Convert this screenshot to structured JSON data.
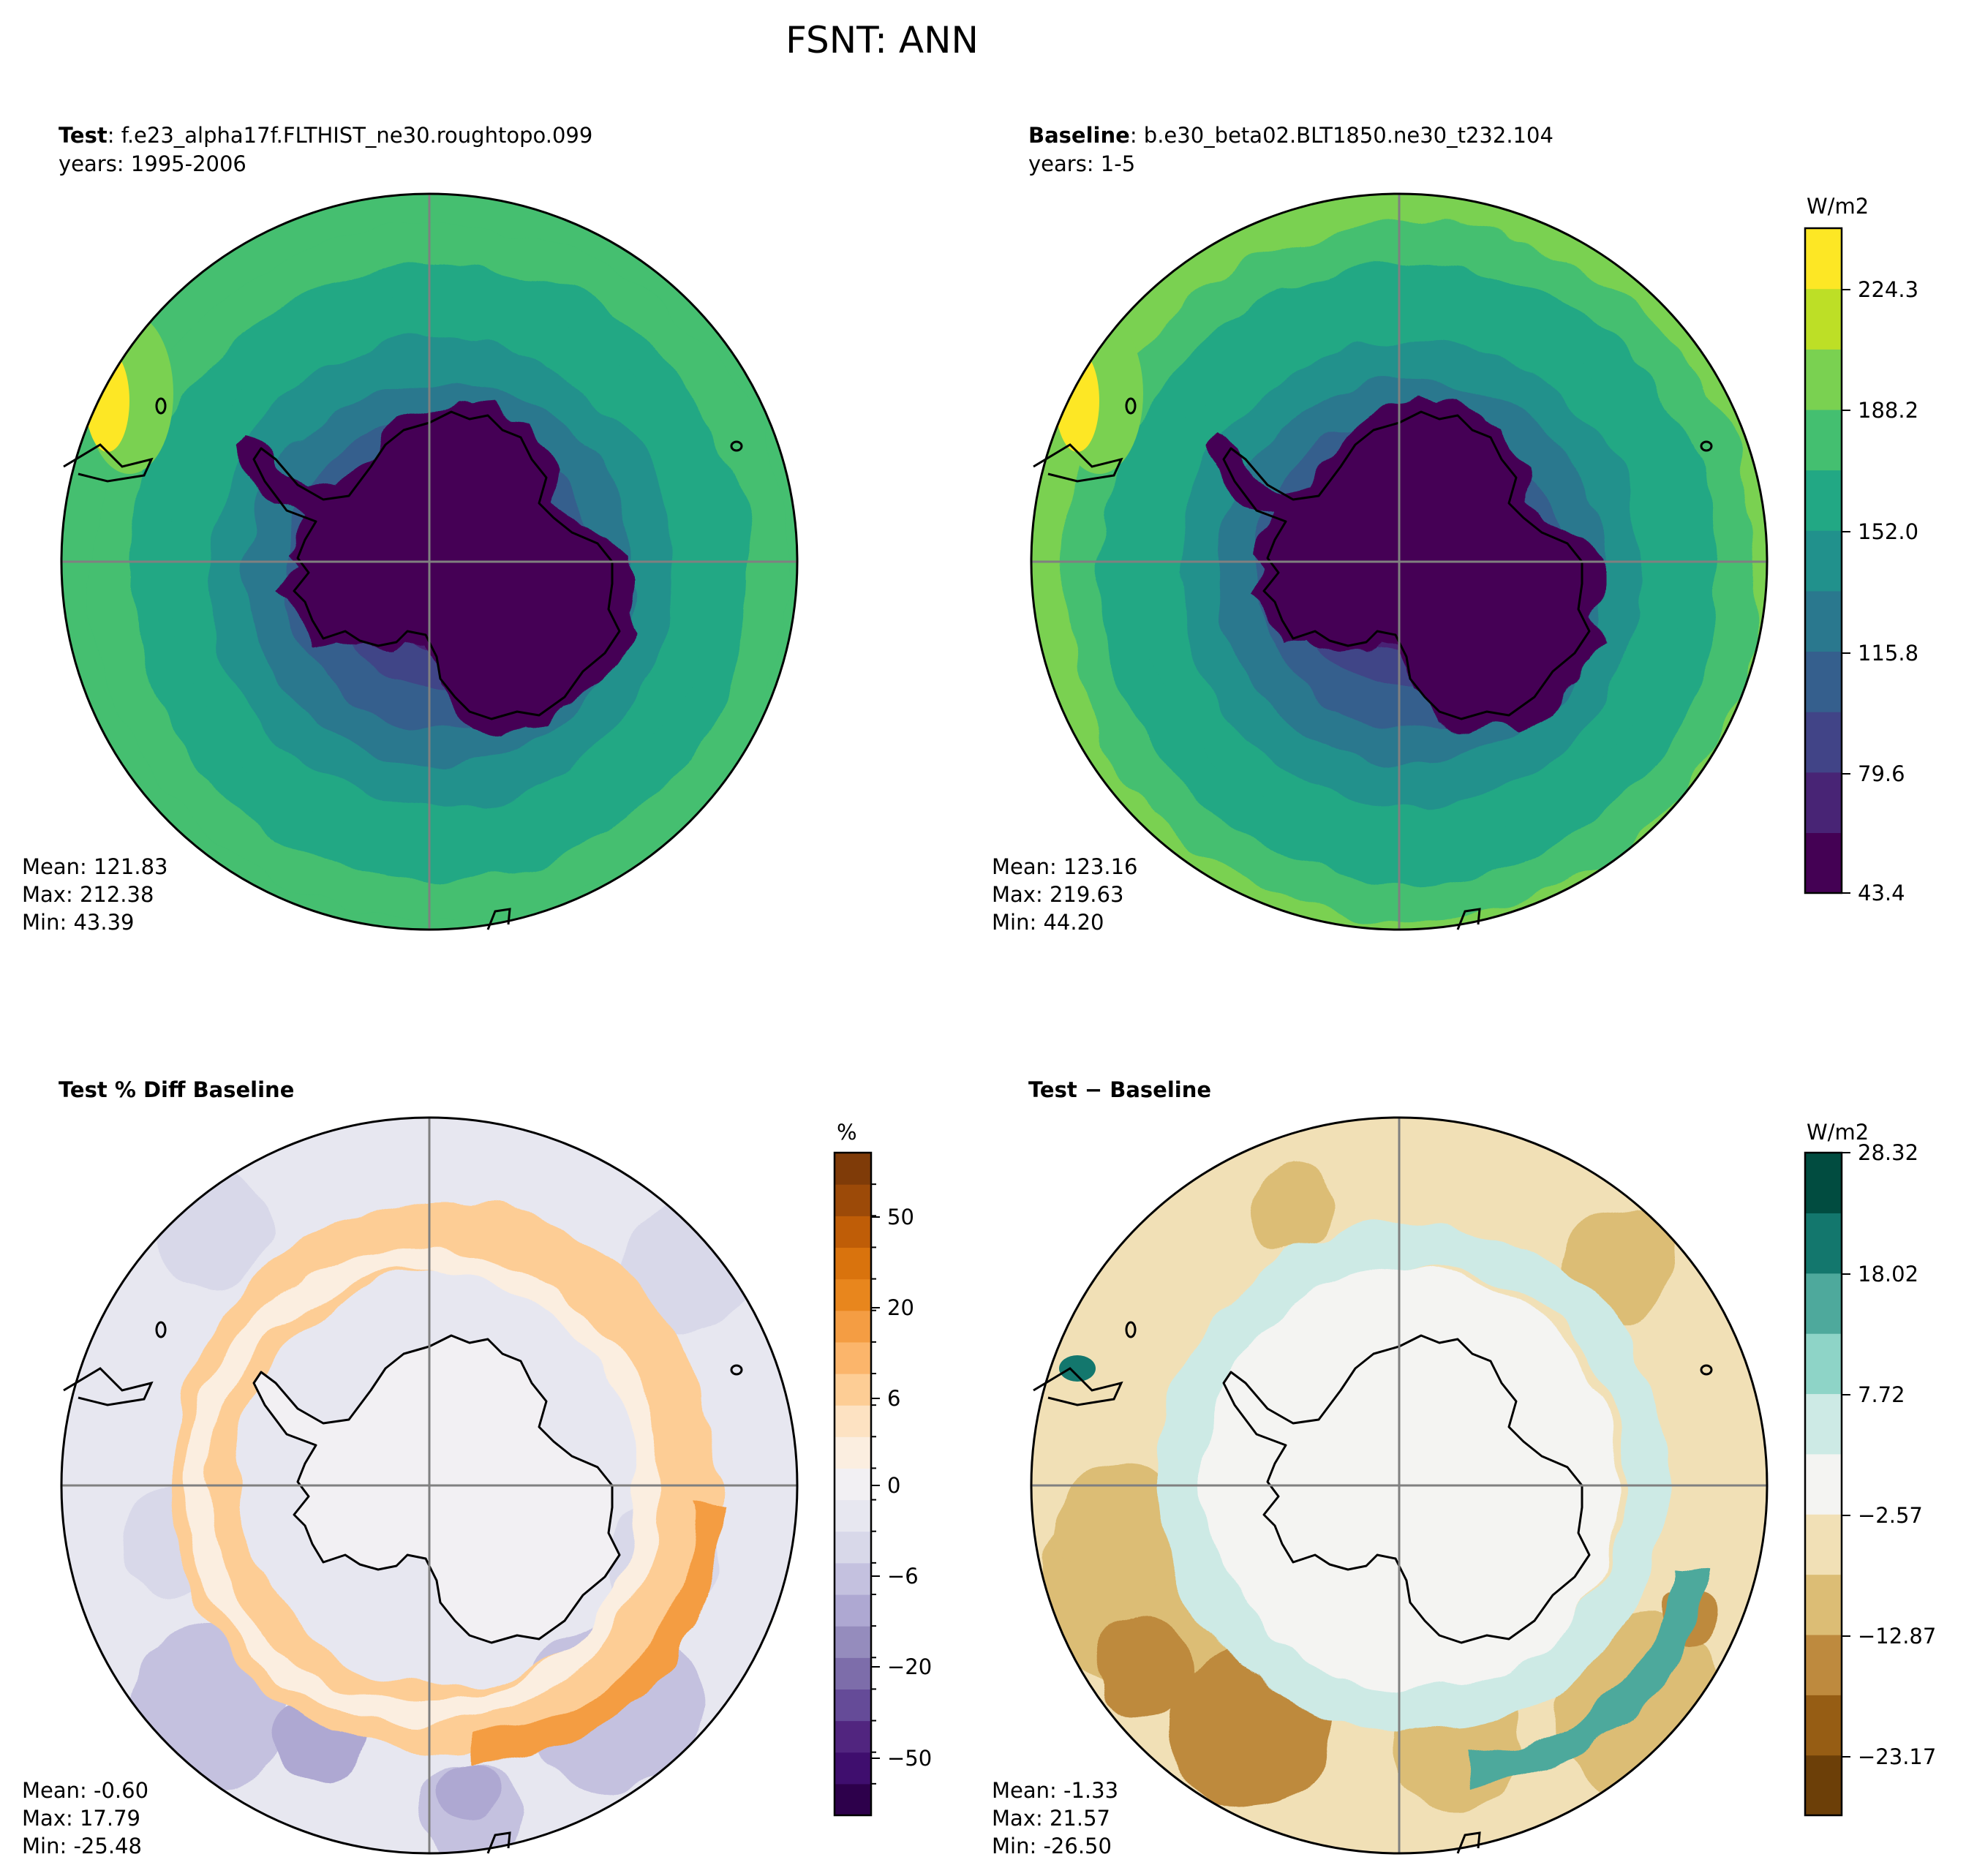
{
  "chart_data": {
    "type": "polar-contour-maps",
    "title": "FSNT: ANN",
    "panels": [
      {
        "id": "test",
        "label_bold": "Test",
        "label_rest": ": f.e23_alpha17f.FLTHIST_ne30.roughtopo.099",
        "years": "years: 1995-2006",
        "stats": {
          "mean": "Mean: 121.83",
          "max": "Max: 212.38",
          "min": "Min: 43.39"
        },
        "field": "main",
        "ring_values": [
          45,
          62,
          80,
          98,
          116,
          134,
          152,
          160,
          175,
          188,
          206
        ]
      },
      {
        "id": "baseline",
        "label_bold": "Baseline",
        "label_rest": ": b.e30_beta02.BLT1850.ne30_t232.104",
        "years": "years: 1-5",
        "stats": {
          "mean": "Mean: 123.16",
          "max": "Max: 219.63",
          "min": "Min: 44.20"
        },
        "field": "main",
        "ring_values": [
          45,
          62,
          80,
          98,
          116,
          134,
          152,
          162,
          178,
          192,
          210
        ]
      },
      {
        "id": "pctdiff",
        "label_bold": "Test % Diff Baseline",
        "stats": {
          "mean": "Mean: -0.60",
          "max": "Max: 17.79",
          "min": "Min: -25.48"
        },
        "field": "pct"
      },
      {
        "id": "diff",
        "label_bold": "Test − Baseline",
        "stats": {
          "mean": "Mean: -1.33",
          "max": "Max: 21.57",
          "min": "Min: -26.50"
        },
        "field": "diff"
      }
    ],
    "colorbars": [
      {
        "id": "main",
        "unit": "W/m2",
        "range": [
          43.4,
          242.5
        ],
        "ticks": [
          "224.3",
          "188.2",
          "152.0",
          "115.8",
          "79.6",
          "43.4"
        ],
        "colors": [
          "#440154",
          "#482475",
          "#414487",
          "#355f8d",
          "#2a788e",
          "#21918c",
          "#22a884",
          "#44bf70",
          "#7ad151",
          "#bddf26",
          "#fde725"
        ]
      },
      {
        "id": "pct",
        "unit": "%",
        "ticks": [
          "50",
          "20",
          "6",
          "0",
          "−6",
          "−20",
          "−50"
        ],
        "colors": [
          "#2d004b",
          "#3f0e6e",
          "#51257f",
          "#654b98",
          "#7d6daa",
          "#958cbd",
          "#aea8d2",
          "#c4c1df",
          "#d8d8e9",
          "#e7e7f0",
          "#f2f0f3",
          "#fbeee0",
          "#fde2c2",
          "#fdcd95",
          "#fbb56b",
          "#f49d43",
          "#e8861d",
          "#d9730d",
          "#bf5d07",
          "#9c4a08",
          "#7f3b08"
        ]
      },
      {
        "id": "diff",
        "unit": "W/m2",
        "ticks": [
          "28.32",
          "18.02",
          "7.72",
          "−2.57",
          "−12.87",
          "−23.17"
        ],
        "colors": [
          "#6c3f08",
          "#965d14",
          "#be8a3e",
          "#dcbd75",
          "#f1e0b6",
          "#f4f4f2",
          "#cdeae5",
          "#8ed4c7",
          "#4ea99c",
          "#13776d",
          "#014c40"
        ]
      }
    ]
  }
}
